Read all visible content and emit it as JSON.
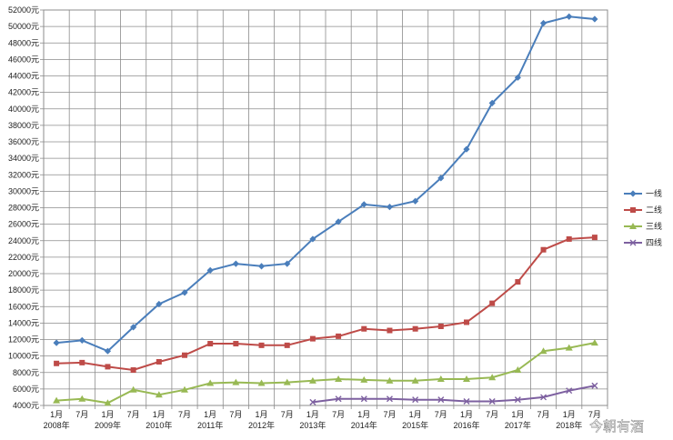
{
  "chart_data": {
    "type": "line",
    "title": "",
    "xlabel": "",
    "ylabel": "",
    "y_unit_suffix": "元",
    "ylim": [
      4000,
      52000
    ],
    "ytick_step": 2000,
    "grid": true,
    "legend_position": "right",
    "x_months": [
      "1月",
      "7月",
      "1月",
      "7月",
      "1月",
      "7月",
      "1月",
      "7月",
      "1月",
      "7月",
      "1月",
      "7月",
      "1月",
      "7月",
      "1月",
      "7月",
      "1月",
      "7月",
      "1月",
      "7月",
      "1月",
      "7月"
    ],
    "x_years": [
      "2008年",
      "",
      "2009年",
      "",
      "2010年",
      "",
      "2011年",
      "",
      "2012年",
      "",
      "2013年",
      "",
      "2014年",
      "",
      "2015年",
      "",
      "2016年",
      "",
      "2017年",
      "",
      "2018年",
      ""
    ],
    "series": [
      {
        "name": "一线",
        "color": "#4a7ebb",
        "marker": "diamond",
        "values": [
          11600,
          11900,
          10600,
          13500,
          16300,
          17700,
          20400,
          21200,
          20900,
          21200,
          24200,
          26300,
          28400,
          28100,
          28800,
          31600,
          35100,
          40700,
          43800,
          50400,
          51200,
          50900
        ]
      },
      {
        "name": "二线",
        "color": "#be4b48",
        "marker": "square",
        "values": [
          9100,
          9200,
          8700,
          8300,
          9300,
          10100,
          11500,
          11500,
          11300,
          11300,
          12100,
          12400,
          13300,
          13100,
          13300,
          13600,
          14100,
          16400,
          19000,
          22900,
          24200,
          24400
        ]
      },
      {
        "name": "三线",
        "color": "#98b954",
        "marker": "triangle",
        "values": [
          4600,
          4800,
          4300,
          5900,
          5300,
          5900,
          6700,
          6800,
          6700,
          6800,
          7000,
          7200,
          7100,
          7000,
          7000,
          7200,
          7200,
          7400,
          8300,
          10600,
          11000,
          11600
        ]
      },
      {
        "name": "四线",
        "color": "#7d60a0",
        "marker": "x",
        "values": [
          null,
          null,
          null,
          null,
          null,
          null,
          null,
          null,
          null,
          null,
          4400,
          4800,
          4800,
          4800,
          4700,
          4700,
          4500,
          4500,
          4700,
          5000,
          5800,
          6400
        ]
      }
    ]
  },
  "watermark": {
    "text": "今朝有酒"
  }
}
